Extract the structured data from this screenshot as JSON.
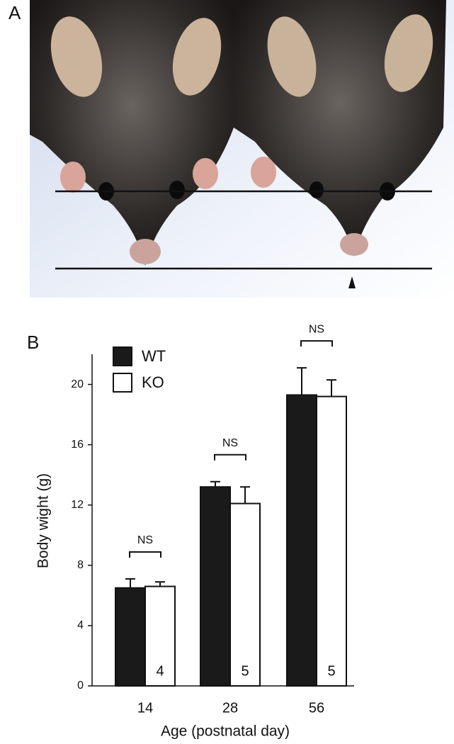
{
  "panel_labels": {
    "a": "A",
    "b": "B"
  },
  "chart_data": {
    "type": "bar",
    "categories": [
      "14",
      "28",
      "56"
    ],
    "x_label": "Age (postnatal day)",
    "y_label": "Body wight (g)",
    "ylim": [
      0,
      22
    ],
    "yticks": [
      0,
      4,
      8,
      12,
      16,
      20
    ],
    "series": [
      {
        "name": "WT",
        "color": "#1a1a1a",
        "values": [
          6.5,
          13.2,
          19.3
        ],
        "errors": [
          0.6,
          0.35,
          1.8
        ]
      },
      {
        "name": "KO",
        "color": "#ffffff",
        "values": [
          6.6,
          12.1,
          19.2
        ],
        "errors": [
          0.3,
          1.1,
          1.1
        ]
      }
    ],
    "sample_sizes": [
      4,
      5,
      5
    ],
    "significance": [
      "NS",
      "NS",
      "NS"
    ],
    "legend": "upper-left"
  }
}
